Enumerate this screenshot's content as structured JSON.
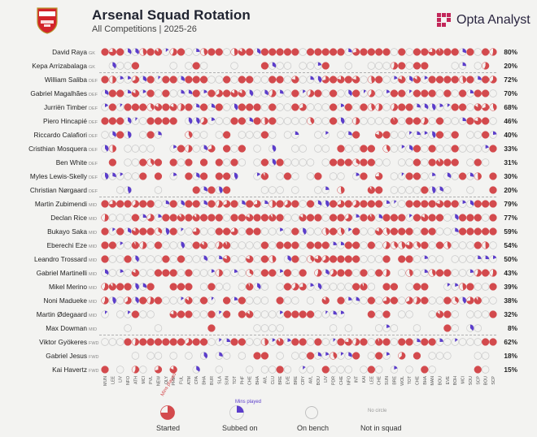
{
  "header": {
    "title": "Arsenal Squad Rotation",
    "subtitle": "All Competitions | 2025-26",
    "brand": "Opta Analyst",
    "crest_text": "Arsenal"
  },
  "legend": {
    "started": "Started",
    "started_note": "Mins played",
    "subbed_on": "Subbed on",
    "subbed_on_note": "Mins played",
    "on_bench": "On bench",
    "not_in_squad": "Not in squad",
    "not_in_squad_note": "No circle"
  },
  "colors": {
    "started": "#d34a4d",
    "subbed_on": "#5b3dcb",
    "bench_stroke": "#c9c9c9",
    "background": "#f3f3f1",
    "title": "#1f2330"
  },
  "chart_data": {
    "type": "table",
    "matches": [
      "MUN",
      "LEE",
      "LIV",
      "NFO",
      "ATH",
      "MCI",
      "PVL",
      "NEW",
      "OLY",
      "PHM",
      "FUL",
      "ATM",
      "CPA",
      "BHA",
      "BUR",
      "SLA",
      "SUN",
      "TOT",
      "PHF",
      "CHE",
      "BHA",
      "AVL",
      "CLU",
      "BRE",
      "EVE",
      "BRE",
      "CRY",
      "AVL",
      "BOU",
      "LIV",
      "PDR",
      "CHE",
      "NFO",
      "INT",
      "KAI",
      "LEE",
      "CHE",
      "SUN",
      "BRE",
      "WOL",
      "TOT",
      "CHE",
      "BHA",
      "MAN",
      "BOU",
      "EVE",
      "BOH",
      "MCI",
      "SOU",
      "SCP",
      "BOU",
      "SCP"
    ],
    "players": [
      {
        "name": "David Raya",
        "position": "GK",
        "pct": "80%",
        "group": "GK"
      },
      {
        "name": "Kepa Arrizabalaga",
        "position": "GK",
        "pct": "20%",
        "group": "GK"
      },
      {
        "name": "William Saliba",
        "position": "DEF",
        "pct": "72%",
        "group": "DEF"
      },
      {
        "name": "Gabriel Magalhães",
        "position": "DEF",
        "pct": "70%",
        "group": "DEF"
      },
      {
        "name": "Jurriën Timber",
        "position": "DEF",
        "pct": "68%",
        "group": "DEF"
      },
      {
        "name": "Piero Hincapié",
        "position": "DEF",
        "pct": "46%",
        "group": "DEF"
      },
      {
        "name": "Riccardo Calafiori",
        "position": "DEF",
        "pct": "40%",
        "group": "DEF"
      },
      {
        "name": "Cristhian Mosquera",
        "position": "DEF",
        "pct": "33%",
        "group": "DEF"
      },
      {
        "name": "Ben White",
        "position": "DEF",
        "pct": "31%",
        "group": "DEF"
      },
      {
        "name": "Myles Lewis-Skelly",
        "position": "DEF",
        "pct": "30%",
        "group": "DEF"
      },
      {
        "name": "Christian Nørgaard",
        "position": "DEF",
        "pct": "20%",
        "group": "DEF"
      },
      {
        "name": "Martin Zubimendi",
        "position": "MID",
        "pct": "79%",
        "group": "MID"
      },
      {
        "name": "Declan Rice",
        "position": "MID",
        "pct": "77%",
        "group": "MID"
      },
      {
        "name": "Bukayo Saka",
        "position": "MID",
        "pct": "59%",
        "group": "MID"
      },
      {
        "name": "Eberechi Eze",
        "position": "MID",
        "pct": "54%",
        "group": "MID"
      },
      {
        "name": "Leandro Trossard",
        "position": "MID",
        "pct": "50%",
        "group": "MID"
      },
      {
        "name": "Gabriel Martinelli",
        "position": "MID",
        "pct": "43%",
        "group": "MID"
      },
      {
        "name": "Mikel Merino",
        "position": "MID",
        "pct": "39%",
        "group": "MID"
      },
      {
        "name": "Noni Madueke",
        "position": "MID",
        "pct": "38%",
        "group": "MID"
      },
      {
        "name": "Martin Ødegaard",
        "position": "MID",
        "pct": "32%",
        "group": "MID"
      },
      {
        "name": "Max Dowman",
        "position": "MID",
        "pct": "8%",
        "group": "MID"
      },
      {
        "name": "Viktor Gyökeres",
        "position": "FWD",
        "pct": "62%",
        "group": "FWD"
      },
      {
        "name": "Gabriel Jesus",
        "position": "FWD",
        "pct": "18%",
        "group": "FWD"
      },
      {
        "name": "Kai Havertz",
        "position": "FWD",
        "pct": "15%",
        "group": "FWD"
      }
    ],
    "encoding": {
      "started": "red pie, filled share = minutes played",
      "subbed_on": "purple pie, filled share = minutes played",
      "on_bench": "empty grey circle",
      "not_in_squad": "no circle"
    }
  }
}
